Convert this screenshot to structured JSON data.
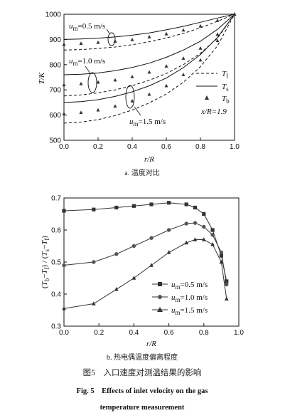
{
  "chart_data": [
    {
      "type": "line",
      "caption": "a. 温度对比",
      "xlabel": "r/R",
      "ylabel": "T/K",
      "xlim": [
        0.0,
        1.0
      ],
      "ylim": [
        500,
        1000
      ],
      "xticks": [
        "0.0",
        "0.2",
        "0.4",
        "0.6",
        "0.8",
        "1.0"
      ],
      "yticks": [
        "500",
        "600",
        "700",
        "800",
        "900",
        "1000"
      ],
      "annotation": "x/R=1.9",
      "velocity_labels": [
        "u_m=0.5 m/s",
        "u_m=1.0 m/s",
        "u_m=1.5 m/s"
      ],
      "legend": [
        {
          "name": "T_f",
          "style": "dashed"
        },
        {
          "name": "T_s",
          "style": "solid"
        },
        {
          "name": "T_b",
          "style": "triangle"
        }
      ],
      "series": [
        {
          "velocity": "0.5",
          "kind": "T_f",
          "x": [
            0,
            0.1,
            0.2,
            0.3,
            0.4,
            0.5,
            0.6,
            0.7,
            0.8,
            0.9,
            1.0
          ],
          "y": [
            858,
            860,
            864,
            870,
            879,
            891,
            906,
            924,
            946,
            972,
            1000
          ]
        },
        {
          "velocity": "0.5",
          "kind": "T_s",
          "x": [
            0,
            0.1,
            0.2,
            0.3,
            0.4,
            0.5,
            0.6,
            0.7,
            0.8,
            0.9,
            1.0
          ],
          "y": [
            900,
            902,
            905,
            910,
            917,
            926,
            938,
            952,
            968,
            985,
            1000
          ]
        },
        {
          "velocity": "0.5",
          "kind": "T_b",
          "x": [
            0,
            0.1,
            0.2,
            0.3,
            0.4,
            0.5,
            0.6,
            0.7,
            0.8,
            0.9,
            1.0
          ],
          "y": [
            880,
            884,
            888,
            893,
            899,
            910,
            922,
            937,
            953,
            975,
            1000
          ]
        },
        {
          "velocity": "1.0",
          "kind": "T_f",
          "x": [
            0,
            0.1,
            0.2,
            0.3,
            0.4,
            0.5,
            0.6,
            0.7,
            0.8,
            0.9,
            1.0
          ],
          "y": [
            676,
            680,
            688,
            700,
            717,
            738,
            765,
            800,
            845,
            905,
            1000
          ]
        },
        {
          "velocity": "1.0",
          "kind": "T_s",
          "x": [
            0,
            0.1,
            0.2,
            0.3,
            0.4,
            0.5,
            0.6,
            0.7,
            0.8,
            0.9,
            1.0
          ],
          "y": [
            760,
            762,
            767,
            776,
            789,
            806,
            829,
            858,
            893,
            940,
            1000
          ]
        },
        {
          "velocity": "1.0",
          "kind": "T_b",
          "x": [
            0,
            0.1,
            0.2,
            0.3,
            0.4,
            0.5,
            0.6,
            0.7,
            0.8,
            0.9,
            1.0
          ],
          "y": [
            720,
            724,
            730,
            739,
            752,
            770,
            794,
            825,
            865,
            920,
            1000
          ]
        },
        {
          "velocity": "1.5",
          "kind": "T_f",
          "x": [
            0,
            0.1,
            0.2,
            0.3,
            0.4,
            0.5,
            0.6,
            0.7,
            0.8,
            0.9,
            1.0
          ],
          "y": [
            568,
            572,
            582,
            598,
            620,
            648,
            684,
            730,
            792,
            875,
            1000
          ]
        },
        {
          "velocity": "1.5",
          "kind": "T_s",
          "x": [
            0,
            0.1,
            0.2,
            0.3,
            0.4,
            0.5,
            0.6,
            0.7,
            0.8,
            0.9,
            1.0
          ],
          "y": [
            650,
            653,
            661,
            674,
            692,
            716,
            747,
            788,
            840,
            908,
            1000
          ]
        },
        {
          "velocity": "1.5",
          "kind": "T_b",
          "x": [
            0,
            0.1,
            0.2,
            0.3,
            0.4,
            0.5,
            0.6,
            0.7,
            0.8,
            0.9,
            1.0
          ],
          "y": [
            605,
            610,
            620,
            635,
            656,
            682,
            716,
            760,
            818,
            895,
            1000
          ]
        }
      ]
    },
    {
      "type": "line",
      "caption": "b. 热电偶温度偏离程度",
      "xlabel": "r/R",
      "ylabel": "(T_b−T_f) / (T_s−T_f)",
      "xlim": [
        0.0,
        1.0
      ],
      "ylim": [
        0.3,
        0.7
      ],
      "xticks": [
        "0.0",
        "0.2",
        "0.4",
        "0.6",
        "0.8",
        "1.0"
      ],
      "yticks": [
        "0.3",
        "0.4",
        "0.5",
        "0.6",
        "0.7"
      ],
      "legend_position": "lower-right",
      "series": [
        {
          "name": "u_m=0.5 m/s",
          "marker": "square",
          "x": [
            0,
            0.17,
            0.3,
            0.4,
            0.5,
            0.6,
            0.7,
            0.75,
            0.8,
            0.85,
            0.9,
            0.93
          ],
          "y": [
            0.66,
            0.664,
            0.67,
            0.675,
            0.68,
            0.685,
            0.68,
            0.67,
            0.65,
            0.6,
            0.52,
            0.44
          ]
        },
        {
          "name": "u_m=1.0 m/s",
          "marker": "circle",
          "x": [
            0,
            0.17,
            0.3,
            0.4,
            0.5,
            0.6,
            0.7,
            0.75,
            0.8,
            0.85,
            0.9,
            0.93
          ],
          "y": [
            0.49,
            0.5,
            0.525,
            0.55,
            0.575,
            0.6,
            0.62,
            0.622,
            0.61,
            0.585,
            0.53,
            0.43
          ]
        },
        {
          "name": "u_m=1.5 m/s",
          "marker": "triangle",
          "x": [
            0,
            0.17,
            0.3,
            0.4,
            0.5,
            0.6,
            0.7,
            0.75,
            0.8,
            0.85,
            0.9,
            0.93
          ],
          "y": [
            0.355,
            0.37,
            0.415,
            0.45,
            0.49,
            0.53,
            0.56,
            0.57,
            0.57,
            0.555,
            0.5,
            0.385
          ]
        }
      ]
    }
  ],
  "figure": {
    "caption_cn": "图5　入口速度对测温结果的影响",
    "caption_en_line1": "Fig. 5　Effects of inlet velocity on the gas",
    "caption_en_line2": "temperature measurement"
  }
}
